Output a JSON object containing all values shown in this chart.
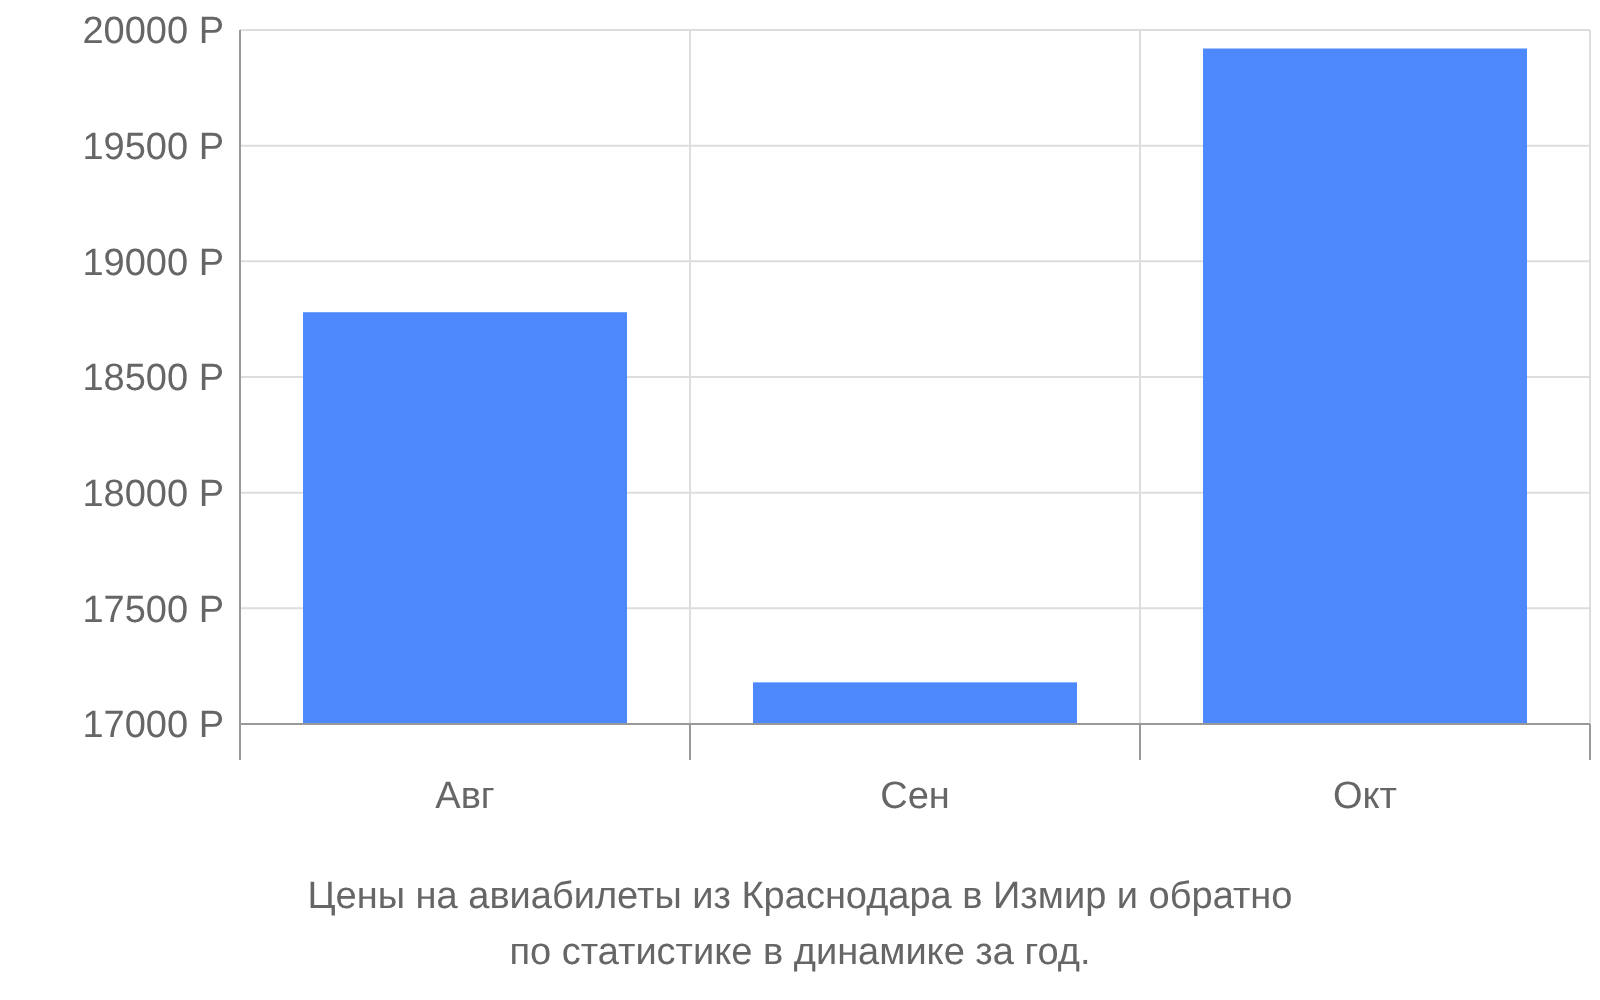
{
  "chart_data": {
    "type": "bar",
    "title": "Цены на авиабилеты из Краснодара в Измир и обратно",
    "subtitle": "по статистике в динамике за год.",
    "categories": [
      "Авг",
      "Сен",
      "Окт"
    ],
    "values": [
      18780,
      17180,
      19920
    ],
    "color": "#4d88fc",
    "ylim": [
      17000,
      20000
    ],
    "yticks": [
      {
        "value": 17000,
        "label": "17000 Р"
      },
      {
        "value": 17500,
        "label": "17500 Р"
      },
      {
        "value": 18000,
        "label": "18000 Р"
      },
      {
        "value": 18500,
        "label": "18500 Р"
      },
      {
        "value": 19000,
        "label": "19000 Р"
      },
      {
        "value": 19500,
        "label": "19500 Р"
      },
      {
        "value": 20000,
        "label": "20000 Р"
      }
    ],
    "grid": true
  }
}
